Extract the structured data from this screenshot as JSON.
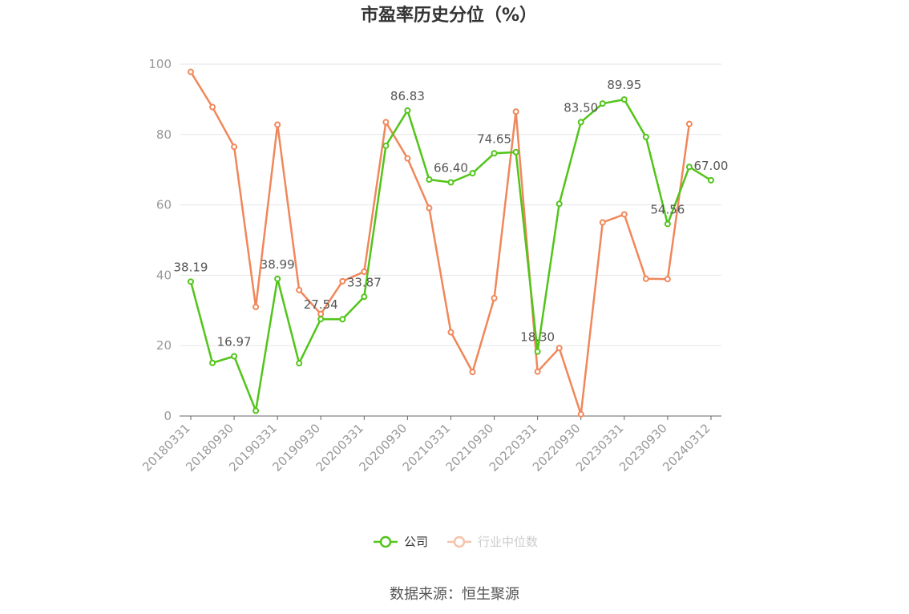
{
  "chart_data": {
    "type": "line",
    "title": "市盈率历史分位（%）",
    "xlabel": "",
    "ylabel": "",
    "ylim": [
      0,
      100
    ],
    "yticks": [
      0,
      20,
      40,
      60,
      80,
      100
    ],
    "grid": true,
    "legend_position": "bottom-center",
    "x": [
      "20180331",
      "20180630",
      "20180930",
      "20181231",
      "20190331",
      "20190630",
      "20190930",
      "20191231",
      "20200331",
      "20200630",
      "20200930",
      "20201231",
      "20210331",
      "20210630",
      "20210930",
      "20211231",
      "20220331",
      "20220630",
      "20220930",
      "20221231",
      "20230331",
      "20230630",
      "20230930",
      "20231231",
      "20240312"
    ],
    "xtick_labels": [
      "20180331",
      "20180930",
      "20190331",
      "20190930",
      "20200331",
      "20200930",
      "20210331",
      "20210930",
      "20220331",
      "20220930",
      "20230331",
      "20230930",
      "20240312"
    ],
    "series": [
      {
        "name": "公司",
        "color": "#52c41a",
        "values": [
          38.19,
          15.1,
          16.97,
          1.5,
          38.99,
          15.0,
          27.54,
          27.5,
          33.87,
          76.8,
          86.83,
          67.2,
          66.4,
          69.0,
          74.65,
          75.0,
          18.3,
          60.3,
          83.5,
          88.8,
          89.95,
          79.3,
          54.56,
          70.8,
          67.0
        ],
        "labels": {
          "0": "38.19",
          "2": "16.97",
          "4": "38.99",
          "6": "27.54",
          "8": "33.87",
          "10": "86.83",
          "12": "66.40",
          "14": "74.65",
          "16": "18.30",
          "18": "83.50",
          "20": "89.95",
          "22": "54.56",
          "24": "67.00"
        }
      },
      {
        "name": "行业中位数",
        "color": "#f0875a",
        "values": [
          97.8,
          87.8,
          76.5,
          31.0,
          82.8,
          35.8,
          29.0,
          38.3,
          41.0,
          83.5,
          73.2,
          59.1,
          23.8,
          12.5,
          33.5,
          86.5,
          12.6,
          19.3,
          0.5,
          55.0,
          57.3,
          39.0,
          38.9,
          83.0,
          null
        ]
      }
    ]
  },
  "source": "数据来源：恒生聚源"
}
